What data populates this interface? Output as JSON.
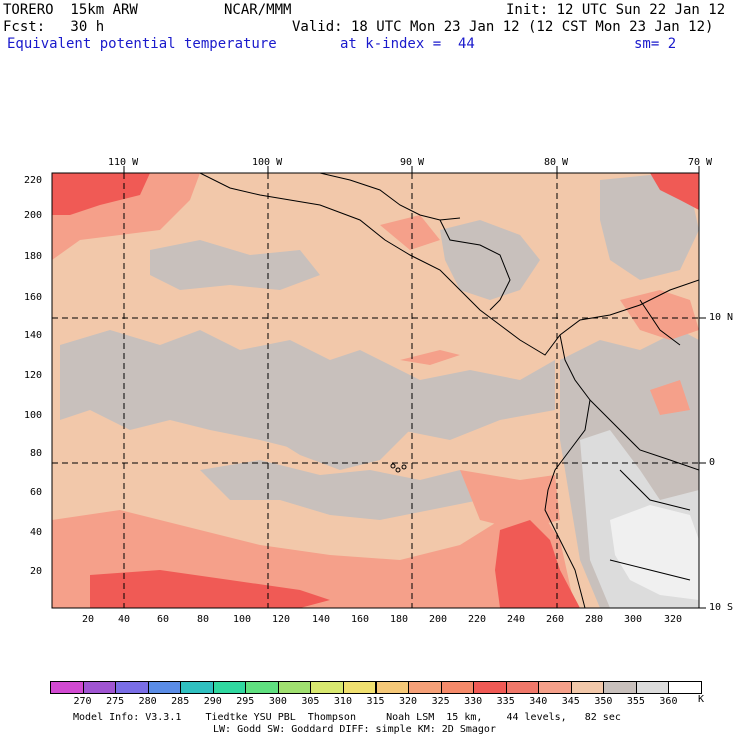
{
  "header": {
    "model": "TORERO  15km ARW",
    "center": "NCAR/MMM",
    "init": "Init: 12 UTC Sun 22 Jan 12",
    "forecast": "Fcst:   30 h",
    "valid": "Valid: 18 UTC Mon 23 Jan 12 (12 CST Mon 23 Jan 12)",
    "field": "Equivalent potential temperature",
    "level": "at k-index =  44",
    "smoothing": "sm= 2"
  },
  "map": {
    "lon_labels": [
      "110 W",
      "100 W",
      "90 W",
      "80 W",
      "70 W"
    ],
    "lat_labels": [
      "10 N",
      "0",
      "10 S"
    ],
    "y_ticks": [
      "220",
      "200",
      "180",
      "160",
      "140",
      "120",
      "100",
      "80",
      "60",
      "40",
      "20"
    ],
    "x_ticks": [
      "20",
      "40",
      "60",
      "80",
      "100",
      "120",
      "140",
      "160",
      "180",
      "200",
      "220",
      "240",
      "260",
      "280",
      "300",
      "320"
    ],
    "colors": {
      "background_peach": "#f2c8aa",
      "gray_region": "#c8c0bc",
      "light_gray": "#dcdcdc",
      "white_region": "#f0f0f0",
      "salmon": "#f5a08a",
      "red": "#f05a55"
    }
  },
  "colorbar": {
    "unit": "K",
    "labels": [
      "270",
      "275",
      "280",
      "285",
      "290",
      "295",
      "300",
      "305",
      "310",
      "315",
      "320",
      "325",
      "330",
      "335",
      "340",
      "345",
      "350",
      "355",
      "360"
    ],
    "colors": [
      "#d24ad2",
      "#a055d2",
      "#7a6ee6",
      "#5a8ce6",
      "#30c0c0",
      "#30d8a0",
      "#60e080",
      "#a0e070",
      "#d8e870",
      "#f0e070",
      "#f5c878",
      "#f5a078",
      "#f58a6a",
      "#f05a55",
      "#f0786a",
      "#f5a08a",
      "#f2c8aa",
      "#c8c0bc",
      "#dcdcdc",
      "#ffffff"
    ]
  },
  "footer": {
    "line1": "Model Info: V3.3.1    Tiedtke YSU PBL  Thompson     Noah LSM  15 km,    44 levels,   82 sec",
    "line2": "LW: Godd SW: Goddard DIFF: simple KM: 2D Smagor"
  }
}
